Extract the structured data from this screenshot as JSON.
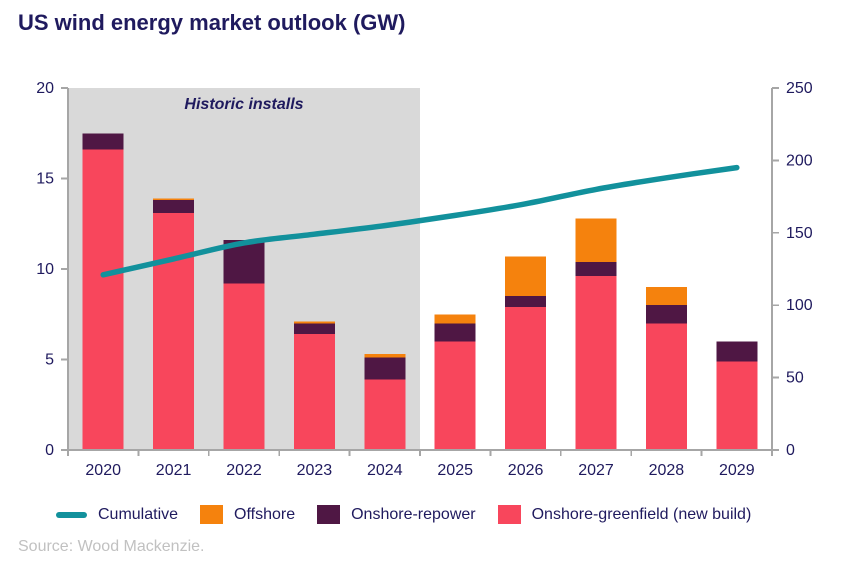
{
  "title": "US wind energy market outlook (GW)",
  "source": "Source: Wood Mackenzie.",
  "colors": {
    "text_navy": "#1F1A5E",
    "axis_gray": "#A6A6A6",
    "source_gray": "#C1C1C1",
    "background": "#FFFFFF"
  },
  "legend": [
    {
      "label": "Cumulative",
      "marker": "line",
      "color": "#12919C"
    },
    {
      "label": "Offshore",
      "marker": "square",
      "color": "#F5820D"
    },
    {
      "label": "Onshore-repower",
      "marker": "square",
      "color": "#4F1744"
    },
    {
      "label": "Onshore-greenfield (new build)",
      "marker": "square",
      "color": "#F8465C"
    }
  ],
  "chart_data": {
    "type": "bar",
    "subtype": "stacked-bars-with-line",
    "title": "US wind energy market outlook (GW)",
    "categories": [
      "2020",
      "2021",
      "2022",
      "2023",
      "2024",
      "2025",
      "2026",
      "2027",
      "2028",
      "2029"
    ],
    "series": [
      {
        "name": "Onshore-greenfield (new build)",
        "type": "bar",
        "axis": "left",
        "color": "#F8465C",
        "values": [
          16.6,
          13.1,
          9.2,
          6.4,
          3.9,
          6.0,
          7.9,
          9.6,
          7.0,
          4.9
        ]
      },
      {
        "name": "Onshore-repower",
        "type": "bar",
        "axis": "left",
        "color": "#4F1744",
        "values": [
          0.9,
          0.7,
          2.4,
          0.6,
          1.2,
          1.0,
          0.6,
          0.8,
          1.0,
          1.1
        ]
      },
      {
        "name": "Offshore",
        "type": "bar",
        "axis": "left",
        "color": "#F5820D",
        "values": [
          0,
          0.1,
          0,
          0.1,
          0.2,
          0.5,
          2.2,
          2.4,
          1.0,
          0
        ]
      },
      {
        "name": "Cumulative",
        "type": "line",
        "axis": "right",
        "color": "#12919C",
        "values": [
          121,
          132,
          143,
          149,
          155,
          162,
          170,
          180,
          188,
          195
        ]
      }
    ],
    "left_axis": {
      "range": [
        0,
        20
      ],
      "ticks": [
        0,
        5,
        10,
        15,
        20
      ]
    },
    "right_axis": {
      "range": [
        0,
        250
      ],
      "ticks": [
        0,
        50,
        100,
        150,
        200,
        250
      ]
    },
    "grid": false,
    "legend_position": "bottom",
    "historic_band": {
      "label": "Historic installs",
      "from_category": "2020",
      "to_category": "2024",
      "color": "#D9D9D9"
    }
  }
}
